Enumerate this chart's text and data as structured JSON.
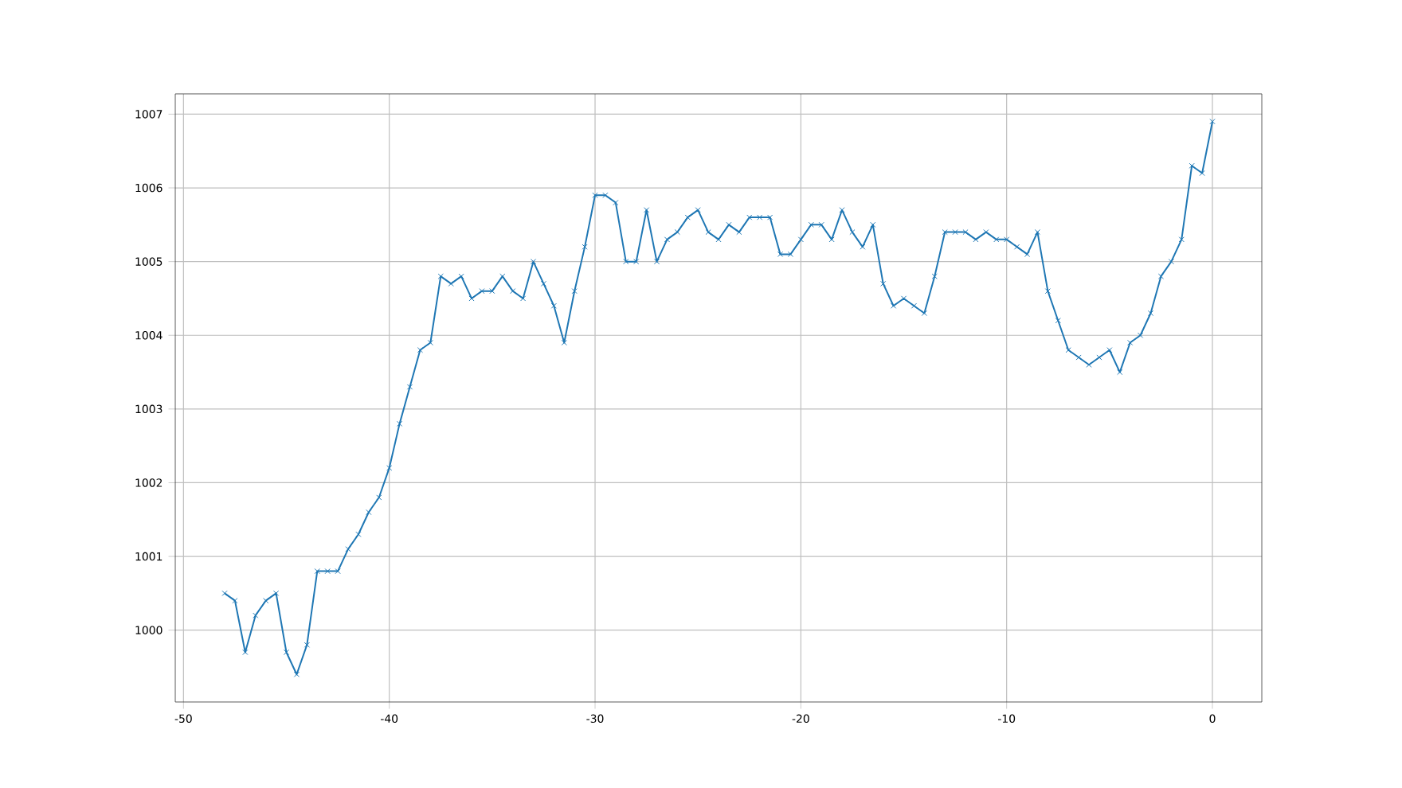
{
  "chart_data": {
    "type": "line",
    "x": [
      -48,
      -47.5,
      -47,
      -46.5,
      -46,
      -45.5,
      -45,
      -44.5,
      -44,
      -43.5,
      -43,
      -42.5,
      -42,
      -41.5,
      -41,
      -40.5,
      -40,
      -39.5,
      -39,
      -38.5,
      -38,
      -37.5,
      -37,
      -36.5,
      -36,
      -35.5,
      -35,
      -34.5,
      -34,
      -33.5,
      -33,
      -32.5,
      -32,
      -31.5,
      -31,
      -30.5,
      -30,
      -29.5,
      -29,
      -28.5,
      -28,
      -27.5,
      -27,
      -26.5,
      -26,
      -25.5,
      -25,
      -24.5,
      -24,
      -23.5,
      -23,
      -22.5,
      -22,
      -21.5,
      -21,
      -20.5,
      -20,
      -19.5,
      -19,
      -18.5,
      -18,
      -17.5,
      -17,
      -16.5,
      -16,
      -15.5,
      -15,
      -14.5,
      -14,
      -13.5,
      -13,
      -12.5,
      -12,
      -11.5,
      -11,
      -10.5,
      -10,
      -9.5,
      -9,
      -8.5,
      -8,
      -7.5,
      -7,
      -6.5,
      -6,
      -5.5,
      -5,
      -4.5,
      -4,
      -3.5,
      -3,
      -2.5,
      -2,
      -1.5,
      -1,
      -0.5,
      0
    ],
    "series": [
      {
        "color": "#1f77b4",
        "values": [
          1000.5,
          1000.4,
          999.7,
          1000.2,
          1000.4,
          1000.5,
          999.7,
          999.4,
          999.8,
          1000.8,
          1000.8,
          1000.8,
          1001.1,
          1001.3,
          1001.6,
          1001.8,
          1002.2,
          1002.8,
          1003.3,
          1003.8,
          1003.9,
          1004.8,
          1004.7,
          1004.8,
          1004.5,
          1004.6,
          1004.6,
          1004.8,
          1004.6,
          1004.5,
          1005.0,
          1004.7,
          1004.4,
          1003.9,
          1004.6,
          1005.2,
          1005.9,
          1005.9,
          1005.8,
          1005.0,
          1005.0,
          1005.7,
          1005.0,
          1005.3,
          1005.4,
          1005.6,
          1005.7,
          1005.4,
          1005.3,
          1005.5,
          1005.4,
          1005.6,
          1005.6,
          1005.6,
          1005.1,
          1005.1,
          1005.3,
          1005.5,
          1005.5,
          1005.3,
          1005.7,
          1005.4,
          1005.2,
          1005.5,
          1004.7,
          1004.4,
          1004.5,
          1004.4,
          1004.3,
          1004.8,
          1005.4,
          1005.4,
          1005.4,
          1005.3,
          1005.4,
          1005.3,
          1005.3,
          1005.2,
          1005.1,
          1005.4,
          1004.6,
          1004.2,
          1003.8,
          1003.7,
          1003.6,
          1003.7,
          1003.8,
          1003.5,
          1003.9,
          1004.0,
          1004.3,
          1004.8,
          1005.0,
          1005.3,
          1006.3,
          1006.2,
          1006.9
        ]
      }
    ],
    "xlim": [
      -50.4,
      2.4
    ],
    "ylim": [
      999.025,
      1007.275
    ],
    "xticks": [
      -50,
      -40,
      -30,
      -20,
      -10,
      0
    ],
    "yticks": [
      1000,
      1001,
      1002,
      1003,
      1004,
      1005,
      1006,
      1007
    ],
    "grid": true,
    "marker": "cross",
    "line_style": "solid"
  }
}
